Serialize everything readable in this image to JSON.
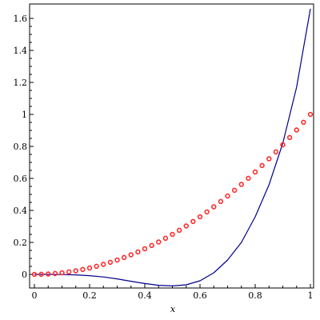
{
  "chart_data": {
    "type": "line",
    "title": "",
    "xlabel": "x",
    "ylabel": "",
    "xlim": [
      0,
      1
    ],
    "ylim": [
      -0.08,
      1.68
    ],
    "grid": false,
    "legend": "none",
    "x_ticks": [
      {
        "value": 0,
        "label": "0"
      },
      {
        "value": 0.2,
        "label": "0.2"
      },
      {
        "value": 0.4,
        "label": "0.4"
      },
      {
        "value": 0.6,
        "label": "0.6"
      },
      {
        "value": 0.8,
        "label": "0.8"
      },
      {
        "value": 1,
        "label": "1"
      }
    ],
    "y_ticks": [
      {
        "value": 0,
        "label": "0"
      },
      {
        "value": 0.2,
        "label": "0.2"
      },
      {
        "value": 0.4,
        "label": "0.4"
      },
      {
        "value": 0.6,
        "label": "0.6"
      },
      {
        "value": 0.8,
        "label": "0.8"
      },
      {
        "value": 1,
        "label": "1"
      },
      {
        "value": 1.2,
        "label": "1.2"
      },
      {
        "value": 1.4,
        "label": "1.4"
      },
      {
        "value": 1.6,
        "label": "1.6"
      }
    ],
    "series": [
      {
        "style": "solid-line",
        "color": "#00008b",
        "points": [
          [
            0,
            0
          ],
          [
            0.05,
            0
          ],
          [
            0.1,
            -0.001
          ],
          [
            0.15,
            -0.003
          ],
          [
            0.2,
            -0.008
          ],
          [
            0.25,
            -0.016
          ],
          [
            0.3,
            -0.028
          ],
          [
            0.35,
            -0.043
          ],
          [
            0.4,
            -0.057
          ],
          [
            0.45,
            -0.068
          ],
          [
            0.5,
            -0.072
          ],
          [
            0.55,
            -0.065
          ],
          [
            0.6,
            -0.04
          ],
          [
            0.65,
            0.01
          ],
          [
            0.7,
            0.09
          ],
          [
            0.75,
            0.2
          ],
          [
            0.8,
            0.36
          ],
          [
            0.85,
            0.56
          ],
          [
            0.9,
            0.82
          ],
          [
            0.95,
            1.17
          ],
          [
            1,
            1.66
          ]
        ]
      },
      {
        "style": "dotted-points",
        "color": "#ff2a2a",
        "points": [
          [
            0,
            0
          ],
          [
            0.025,
            0.0006
          ],
          [
            0.05,
            0.0025
          ],
          [
            0.075,
            0.0056
          ],
          [
            0.1,
            0.01
          ],
          [
            0.125,
            0.0156
          ],
          [
            0.15,
            0.0225
          ],
          [
            0.175,
            0.0306
          ],
          [
            0.2,
            0.04
          ],
          [
            0.225,
            0.0506
          ],
          [
            0.25,
            0.0625
          ],
          [
            0.275,
            0.0756
          ],
          [
            0.3,
            0.09
          ],
          [
            0.325,
            0.1056
          ],
          [
            0.35,
            0.1225
          ],
          [
            0.375,
            0.1406
          ],
          [
            0.4,
            0.16
          ],
          [
            0.425,
            0.1806
          ],
          [
            0.45,
            0.2025
          ],
          [
            0.475,
            0.2256
          ],
          [
            0.5,
            0.25
          ],
          [
            0.525,
            0.2756
          ],
          [
            0.55,
            0.3025
          ],
          [
            0.575,
            0.3306
          ],
          [
            0.6,
            0.36
          ],
          [
            0.625,
            0.3906
          ],
          [
            0.65,
            0.4225
          ],
          [
            0.675,
            0.4556
          ],
          [
            0.7,
            0.49
          ],
          [
            0.725,
            0.5256
          ],
          [
            0.75,
            0.5625
          ],
          [
            0.775,
            0.6006
          ],
          [
            0.8,
            0.64
          ],
          [
            0.825,
            0.6806
          ],
          [
            0.85,
            0.7225
          ],
          [
            0.875,
            0.7656
          ],
          [
            0.9,
            0.81
          ],
          [
            0.925,
            0.8556
          ],
          [
            0.95,
            0.9025
          ],
          [
            0.975,
            0.9506
          ],
          [
            1,
            1
          ]
        ]
      }
    ]
  }
}
